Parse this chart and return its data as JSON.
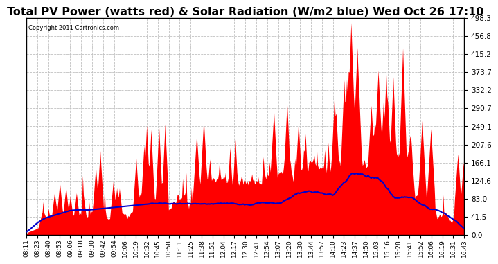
{
  "title": "Total PV Power (watts red) & Solar Radiation (W/m2 blue) Wed Oct 26 17:10",
  "copyright": "Copyright 2011 Cartronics.com",
  "ylim": [
    0.0,
    498.3
  ],
  "yticks": [
    0.0,
    41.5,
    83.0,
    124.6,
    166.1,
    207.6,
    249.1,
    290.7,
    332.2,
    373.7,
    415.2,
    456.8,
    498.3
  ],
  "pv_color": "#ff0000",
  "solar_color": "#0000cc",
  "bg_color": "#ffffff",
  "grid_color": "#c0c0c0",
  "title_fontsize": 11.5,
  "xlabel_fontsize": 6.5,
  "ylabel_fontsize": 7.5,
  "x_tick_labels": [
    "08:11",
    "08:23",
    "08:40",
    "08:53",
    "09:06",
    "09:18",
    "09:30",
    "09:42",
    "09:54",
    "10:06",
    "10:19",
    "10:32",
    "10:45",
    "10:58",
    "11:11",
    "11:25",
    "11:38",
    "11:51",
    "12:04",
    "12:17",
    "12:30",
    "12:41",
    "12:54",
    "13:07",
    "13:20",
    "13:30",
    "13:44",
    "13:57",
    "14:10",
    "14:23",
    "14:37",
    "14:50",
    "15:03",
    "15:16",
    "15:28",
    "15:41",
    "15:52",
    "16:06",
    "16:19",
    "16:31",
    "16:43"
  ]
}
